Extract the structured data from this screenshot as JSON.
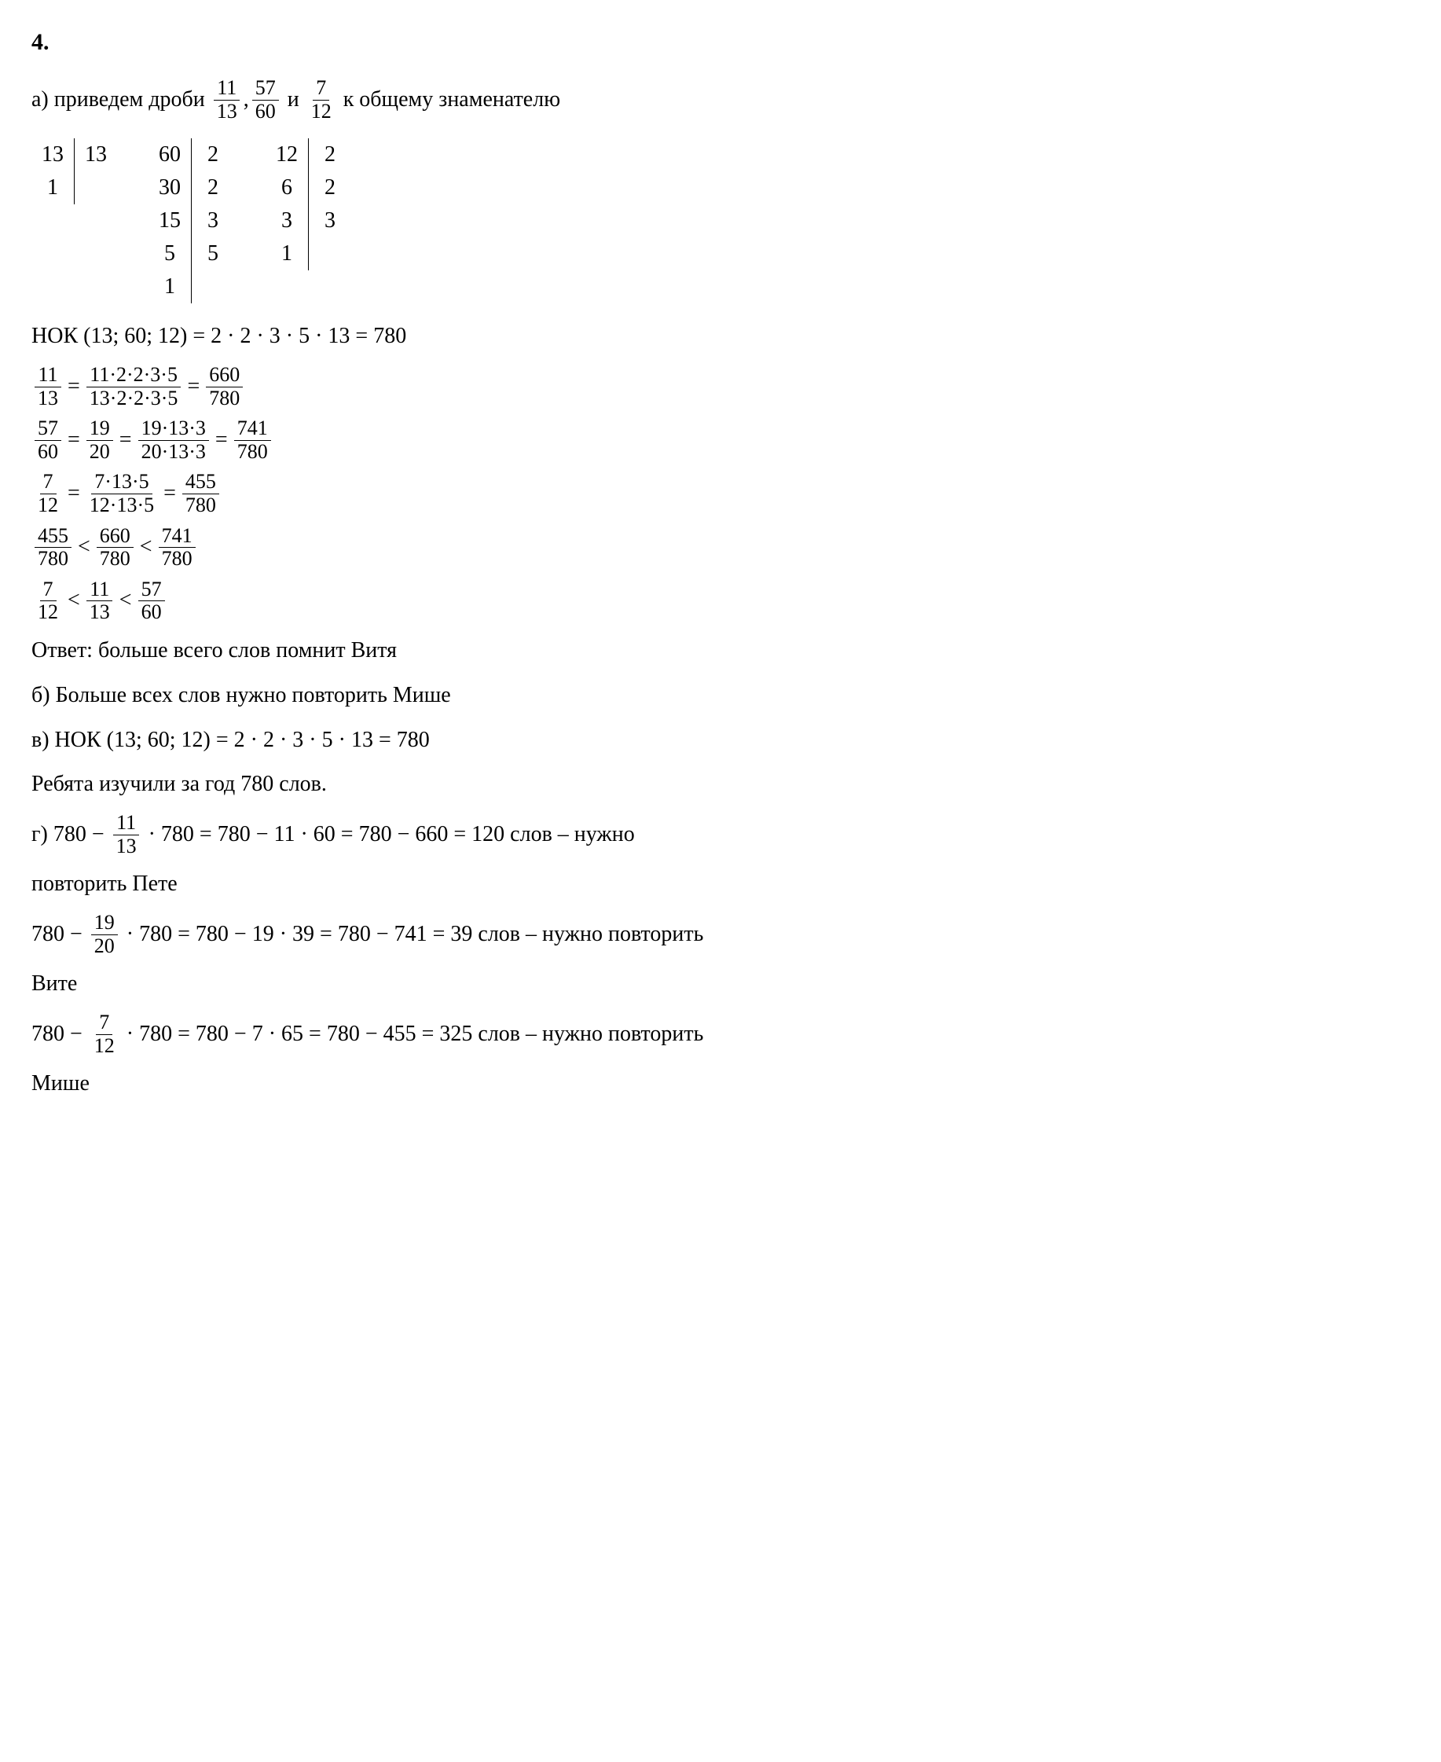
{
  "problem_number": "4.",
  "part_a": {
    "label": "а)",
    "intro_text": "приведем дроби",
    "frac1": {
      "num": "11",
      "den": "13"
    },
    "frac2": {
      "num": "57",
      "den": "60"
    },
    "frac3": {
      "num": "7",
      "den": "12"
    },
    "and_text": "и",
    "outro_text": "к общему знаменателю",
    "comma": ","
  },
  "factorization": {
    "tables": [
      {
        "left": [
          "13",
          "1"
        ],
        "right": [
          "13",
          ""
        ]
      },
      {
        "left": [
          "60",
          "30",
          "15",
          "5",
          "1"
        ],
        "right": [
          "2",
          "2",
          "3",
          "5",
          ""
        ]
      },
      {
        "left": [
          "12",
          "6",
          "3",
          "1"
        ],
        "right": [
          "2",
          "2",
          "3",
          ""
        ]
      }
    ]
  },
  "nok_line": {
    "label": "НОК (13; 60; 12) = 2 · 2 · 3 · 5 · 13 = 780"
  },
  "reduction_1": {
    "lhs": {
      "num": "11",
      "den": "13"
    },
    "mid": {
      "num": "11·2·2·3·5",
      "den": "13·2·2·3·5"
    },
    "rhs": {
      "num": "660",
      "den": "780"
    }
  },
  "reduction_2": {
    "lhs": {
      "num": "57",
      "den": "60"
    },
    "mid1": {
      "num": "19",
      "den": "20"
    },
    "mid2": {
      "num": "19·13·3",
      "den": "20·13·3"
    },
    "rhs": {
      "num": "741",
      "den": "780"
    }
  },
  "reduction_3": {
    "lhs": {
      "num": "7",
      "den": "12"
    },
    "mid": {
      "num": "7·13·5",
      "den": "12·13·5"
    },
    "rhs": {
      "num": "455",
      "den": "780"
    }
  },
  "compare_1": {
    "f1": {
      "num": "455",
      "den": "780"
    },
    "f2": {
      "num": "660",
      "den": "780"
    },
    "f3": {
      "num": "741",
      "den": "780"
    },
    "lt": "<"
  },
  "compare_2": {
    "f1": {
      "num": "7",
      "den": "12"
    },
    "f2": {
      "num": "11",
      "den": "13"
    },
    "f3": {
      "num": "57",
      "den": "60"
    },
    "lt": "<"
  },
  "answer_a": {
    "label": "Ответ:",
    "text": "больше всего слов помнит Витя"
  },
  "part_b": {
    "label": "б)",
    "text": "Больше всех слов нужно повторить Мише"
  },
  "part_v": {
    "label": "в)",
    "nok": "НОК (13; 60; 12) = 2 · 2 · 3 · 5 · 13 = 780",
    "text": "Ребята изучили за год 780 слов."
  },
  "part_g": {
    "label": "г)",
    "eq1_pre": "780 −",
    "eq1_frac": {
      "num": "11",
      "den": "13"
    },
    "eq1_post": "· 780 = 780 − 11 · 60 = 780 − 660 = 120 слов – нужно",
    "eq1_line2": "повторить Пете",
    "eq2_pre": "780 −",
    "eq2_frac": {
      "num": "19",
      "den": "20"
    },
    "eq2_post": "· 780 = 780 − 19 · 39 = 780 − 741 = 39 слов – нужно повторить",
    "eq2_line2": "Вите",
    "eq3_pre": "780 −",
    "eq3_frac": {
      "num": "7",
      "den": "12"
    },
    "eq3_post": "· 780 = 780 − 7 · 65 = 780 − 455 = 325 слов – нужно повторить",
    "eq3_line2": "Мише"
  },
  "equals": "=",
  "styling": {
    "font_family": "Times New Roman",
    "background_color": "#ffffff",
    "text_color": "#000000",
    "base_font_size": 28,
    "fraction_font_size": 26,
    "border_color": "#000000",
    "border_width": 1.5
  }
}
